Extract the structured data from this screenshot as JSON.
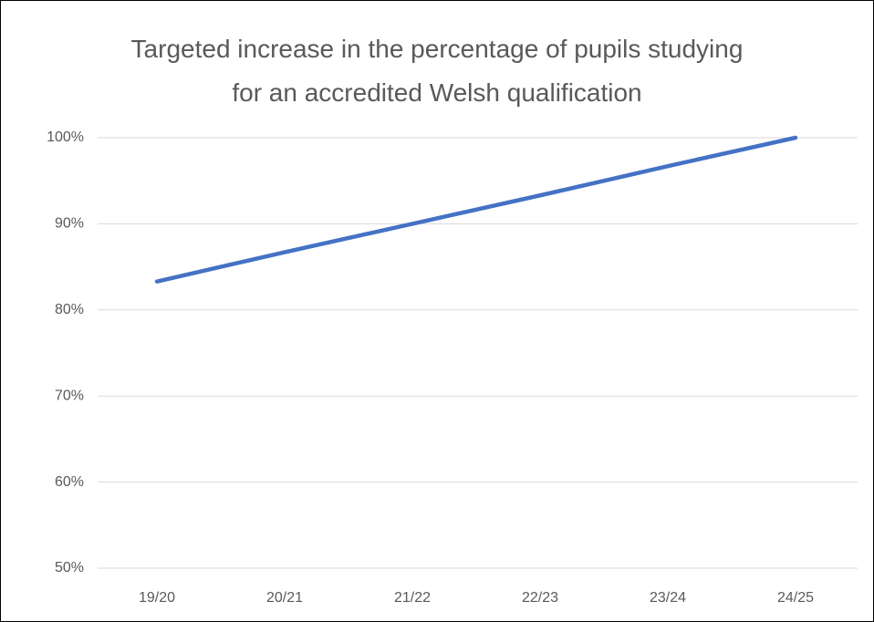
{
  "chart_data": {
    "type": "line",
    "title": "Targeted increase in the percentage of pupils studying for an accredited Welsh qualification",
    "categories": [
      "19/20",
      "20/21",
      "21/22",
      "22/23",
      "23/24",
      "24/25"
    ],
    "values": [
      83.3,
      86.7,
      90,
      93.3,
      96.7,
      100
    ],
    "color": "#4472c4",
    "ylim": [
      50,
      100
    ],
    "yticks": [
      {
        "value": 50,
        "label": "50%"
      },
      {
        "value": 60,
        "label": "60%"
      },
      {
        "value": 70,
        "label": "70%"
      },
      {
        "value": 80,
        "label": "80%"
      },
      {
        "value": 90,
        "label": "90%"
      },
      {
        "value": 100,
        "label": "100%"
      }
    ],
    "grid": true
  }
}
